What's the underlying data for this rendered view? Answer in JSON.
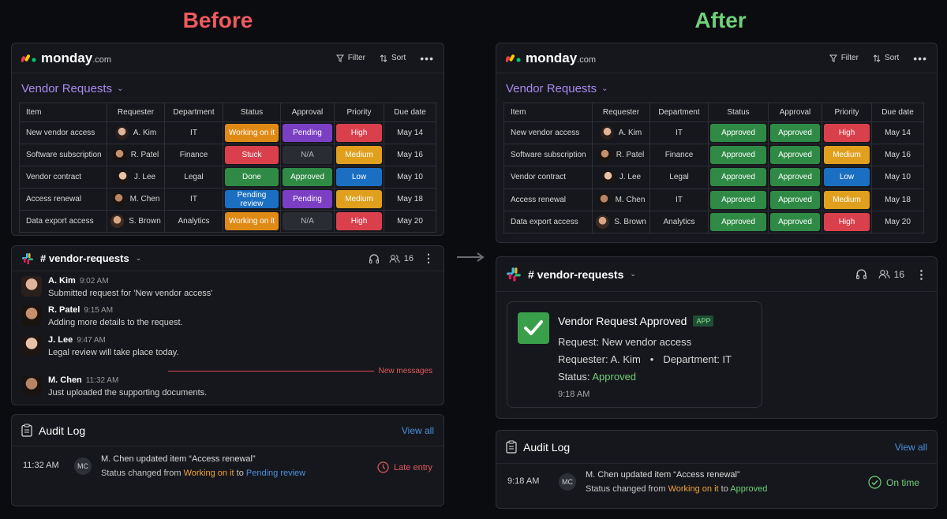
{
  "before_label": "Before",
  "after_label": "After",
  "monday": {
    "logo": "monday",
    "logo_suffix": ".com",
    "filter_label": "Filter",
    "sort_label": "Sort",
    "board_title": "Vendor Requests",
    "columns": [
      "Item",
      "Requester",
      "Department",
      "Status",
      "Approval",
      "Priority",
      "Due date"
    ]
  },
  "before_rows": [
    {
      "item": "New vendor access",
      "requester": "A. Kim",
      "department": "IT",
      "status": "Working on it",
      "approval": "Pending",
      "priority": "High",
      "due": "May 14"
    },
    {
      "item": "Software subscription",
      "requester": "R. Patel",
      "department": "Finance",
      "status": "Stuck",
      "approval": "N/A",
      "priority": "Medium",
      "due": "May 16"
    },
    {
      "item": "Vendor contract",
      "requester": "J. Lee",
      "department": "Legal",
      "status": "Done",
      "approval": "Approved",
      "priority": "Low",
      "due": "May 10"
    },
    {
      "item": "Access renewal",
      "requester": "M. Chen",
      "department": "IT",
      "status": "Pending review",
      "approval": "Pending",
      "priority": "Medium",
      "due": "May 18"
    },
    {
      "item": "Data export access",
      "requester": "S. Brown",
      "department": "Analytics",
      "status": "Working on it",
      "approval": "N/A",
      "priority": "High",
      "due": "May 20"
    }
  ],
  "after_rows": [
    {
      "item": "New vendor access",
      "requester": "A. Kim",
      "department": "IT",
      "status": "Approved",
      "approval": "Approved",
      "priority": "High",
      "due": "May 14"
    },
    {
      "item": "Software subscription",
      "requester": "R. Patel",
      "department": "Finance",
      "status": "Approved",
      "approval": "Approved",
      "priority": "Medium",
      "due": "May 16"
    },
    {
      "item": "Vendor contract",
      "requester": "J. Lee",
      "department": "Legal",
      "status": "Approved",
      "approval": "Approved",
      "priority": "Low",
      "due": "May 10"
    },
    {
      "item": "Access renewal",
      "requester": "M. Chen",
      "department": "IT",
      "status": "Approved",
      "approval": "Approved",
      "priority": "Medium",
      "due": "May 18"
    },
    {
      "item": "Data export access",
      "requester": "S. Brown",
      "department": "Analytics",
      "status": "Approved",
      "approval": "Approved",
      "priority": "High",
      "due": "May 20"
    }
  ],
  "pill_colors": {
    "Working on it": "#e08a16",
    "Stuck": "#d9404c",
    "Done": "#2f8a45",
    "Pending review": "#1b6fc2",
    "Pending": "#7b3fc4",
    "N/A": "#2a2c33",
    "Approved": "#2f8a45",
    "High": "#d9404c",
    "Medium": "#e0a01e",
    "Low": "#1b6fc2"
  },
  "slack": {
    "channel": "# vendor-requests",
    "member_count": "16",
    "messages": [
      {
        "name": "A. Kim",
        "time": "9:02 AM",
        "text": "Submitted request for 'New vendor access'"
      },
      {
        "name": "R. Patel",
        "time": "9:15 AM",
        "text": "Adding more details to the request."
      },
      {
        "name": "J. Lee",
        "time": "9:47 AM",
        "text": "Legal review will take place today."
      },
      {
        "name": "M. Chen",
        "time": "11:32 AM",
        "text": "Just uploaded the supporting documents."
      }
    ],
    "new_messages_label": "New messages",
    "notification": {
      "title": "Vendor Request Approved",
      "badge": "APP",
      "request_label": "Request: New vendor access",
      "requester_label": "Requester: A. Kim",
      "bullet": "•",
      "department_label": "Department: IT",
      "status_prefix": "Status:",
      "status_value": "Approved",
      "time": "9:18 AM"
    }
  },
  "audit_before": {
    "title": "Audit Log",
    "view_all": "View all",
    "time": "11:32 AM",
    "initials": "MC",
    "line1": "M. Chen updated item “Access renewal”",
    "changed_prefix": "Status changed from",
    "from": "Working on it",
    "to_word": "to",
    "to": "Pending review",
    "flag": "Late entry"
  },
  "audit_after": {
    "title": "Audit Log",
    "view_all": "View all",
    "time": "9:18 AM",
    "initials": "MC",
    "line1": "M. Chen updated item “Access renewal”",
    "changed_prefix": "Status changed from",
    "from": "Working on it",
    "to_word": "to",
    "to": "Approved",
    "flag": "On time"
  }
}
